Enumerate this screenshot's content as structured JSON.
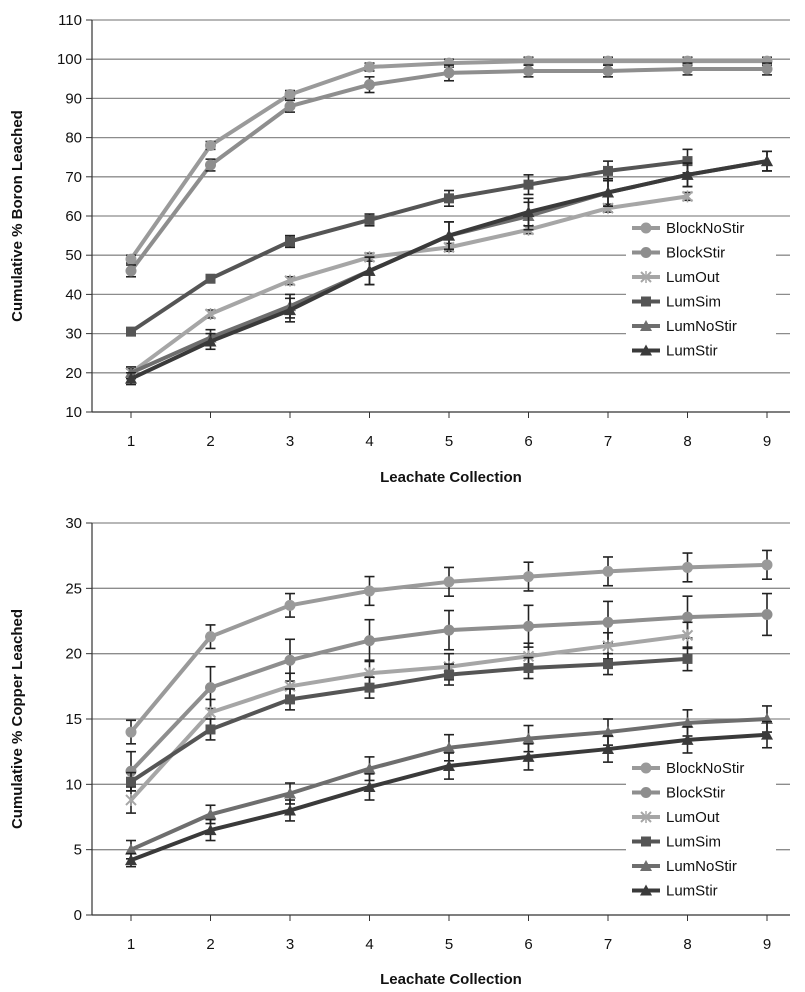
{
  "chart_data": [
    {
      "type": "line",
      "title": "",
      "xlabel": "Leachate Collection",
      "ylabel": "Cumulative % Boron Leached",
      "x": [
        1,
        2,
        3,
        4,
        5,
        6,
        7,
        8,
        9
      ],
      "xticks": [
        "1",
        "2",
        "3",
        "4",
        "5",
        "6",
        "7",
        "8",
        "9"
      ],
      "ylim": [
        10,
        110
      ],
      "yticks": [
        10,
        20,
        30,
        40,
        50,
        60,
        70,
        80,
        90,
        100,
        110
      ],
      "grid": true,
      "legend_position": "right",
      "series": [
        {
          "name": "BlockNoStir",
          "marker": "circle",
          "color": "#9a9a9a",
          "values": [
            49,
            78,
            91,
            98,
            99,
            99.5,
            99.5,
            99.5,
            99.5
          ],
          "error": [
            1,
            1,
            1,
            1,
            1,
            1,
            1,
            1,
            1
          ]
        },
        {
          "name": "BlockStir",
          "marker": "circle",
          "color": "#8e8e8e",
          "values": [
            46,
            73,
            88,
            93.5,
            96.5,
            97,
            97,
            97.5,
            97.5
          ],
          "error": [
            1.5,
            1.5,
            1.5,
            2,
            2,
            1.5,
            1.5,
            1.5,
            1.5
          ]
        },
        {
          "name": "LumOut",
          "marker": "x",
          "color": "#a6a6a6",
          "values": [
            20,
            35,
            43.5,
            49.5,
            52,
            56.5,
            62,
            65,
            null
          ],
          "error": [
            1,
            1,
            1,
            1,
            1,
            1,
            1,
            1,
            null
          ]
        },
        {
          "name": "LumSim",
          "marker": "square",
          "color": "#555555",
          "values": [
            30.5,
            44,
            53.5,
            59,
            64.5,
            68,
            71.5,
            74,
            null
          ],
          "error": [
            1,
            1,
            1.5,
            1.5,
            2,
            2.5,
            2.5,
            3,
            null
          ]
        },
        {
          "name": "LumNoStir",
          "marker": "triangle",
          "color": "#6e6e6e",
          "values": [
            20,
            29,
            37,
            46,
            55,
            60,
            66,
            70.5,
            74
          ],
          "error": [
            1.5,
            2,
            3,
            3.5,
            3.5,
            3.5,
            3.5,
            3,
            2.5
          ]
        },
        {
          "name": "LumStir",
          "marker": "triangle",
          "color": "#3a3a3a",
          "values": [
            18.5,
            28,
            36,
            46,
            55,
            61,
            66,
            70.5,
            74
          ],
          "error": [
            1.5,
            2,
            3,
            3.5,
            3.5,
            3.5,
            3.5,
            3,
            2.5
          ]
        }
      ]
    },
    {
      "type": "line",
      "title": "",
      "xlabel": "Leachate Collection",
      "ylabel": "Cumulative % Copper Leached",
      "x": [
        1,
        2,
        3,
        4,
        5,
        6,
        7,
        8,
        9
      ],
      "xticks": [
        "1",
        "2",
        "3",
        "4",
        "5",
        "6",
        "7",
        "8",
        "9"
      ],
      "ylim": [
        0,
        30
      ],
      "yticks": [
        0,
        5,
        10,
        15,
        20,
        25,
        30
      ],
      "grid": true,
      "legend_position": "right",
      "series": [
        {
          "name": "BlockNoStir",
          "marker": "circle",
          "color": "#9a9a9a",
          "values": [
            14,
            21.3,
            23.7,
            24.8,
            25.5,
            25.9,
            26.3,
            26.6,
            26.8
          ],
          "error": [
            0.9,
            0.9,
            0.9,
            1.1,
            1.1,
            1.1,
            1.1,
            1.1,
            1.1
          ]
        },
        {
          "name": "BlockStir",
          "marker": "circle",
          "color": "#8e8e8e",
          "values": [
            11,
            17.4,
            19.5,
            21,
            21.8,
            22.1,
            22.4,
            22.8,
            23
          ],
          "error": [
            1.5,
            1.6,
            1.6,
            1.6,
            1.5,
            1.6,
            1.6,
            1.6,
            1.6
          ]
        },
        {
          "name": "LumOut",
          "marker": "x",
          "color": "#a6a6a6",
          "values": [
            8.8,
            15.5,
            17.5,
            18.5,
            19,
            19.8,
            20.6,
            21.4,
            null
          ],
          "error": [
            1,
            1,
            1,
            1,
            1,
            1,
            1,
            1,
            null
          ]
        },
        {
          "name": "LumSim",
          "marker": "square",
          "color": "#555555",
          "values": [
            10.2,
            14.2,
            16.5,
            17.4,
            18.4,
            18.9,
            19.2,
            19.6,
            null
          ],
          "error": [
            0.7,
            0.8,
            0.8,
            0.8,
            0.8,
            0.8,
            0.8,
            0.9,
            null
          ]
        },
        {
          "name": "LumNoStir",
          "marker": "triangle",
          "color": "#6e6e6e",
          "values": [
            5,
            7.7,
            9.3,
            11.2,
            12.8,
            13.5,
            14,
            14.7,
            15
          ],
          "error": [
            0.7,
            0.7,
            0.8,
            0.9,
            1,
            1,
            1,
            1,
            1
          ]
        },
        {
          "name": "LumStir",
          "marker": "triangle",
          "color": "#3a3a3a",
          "values": [
            4.2,
            6.5,
            8,
            9.8,
            11.4,
            12.1,
            12.7,
            13.4,
            13.8
          ],
          "error": [
            0.5,
            0.8,
            0.8,
            1,
            1,
            1,
            1,
            1,
            1
          ]
        }
      ]
    }
  ]
}
